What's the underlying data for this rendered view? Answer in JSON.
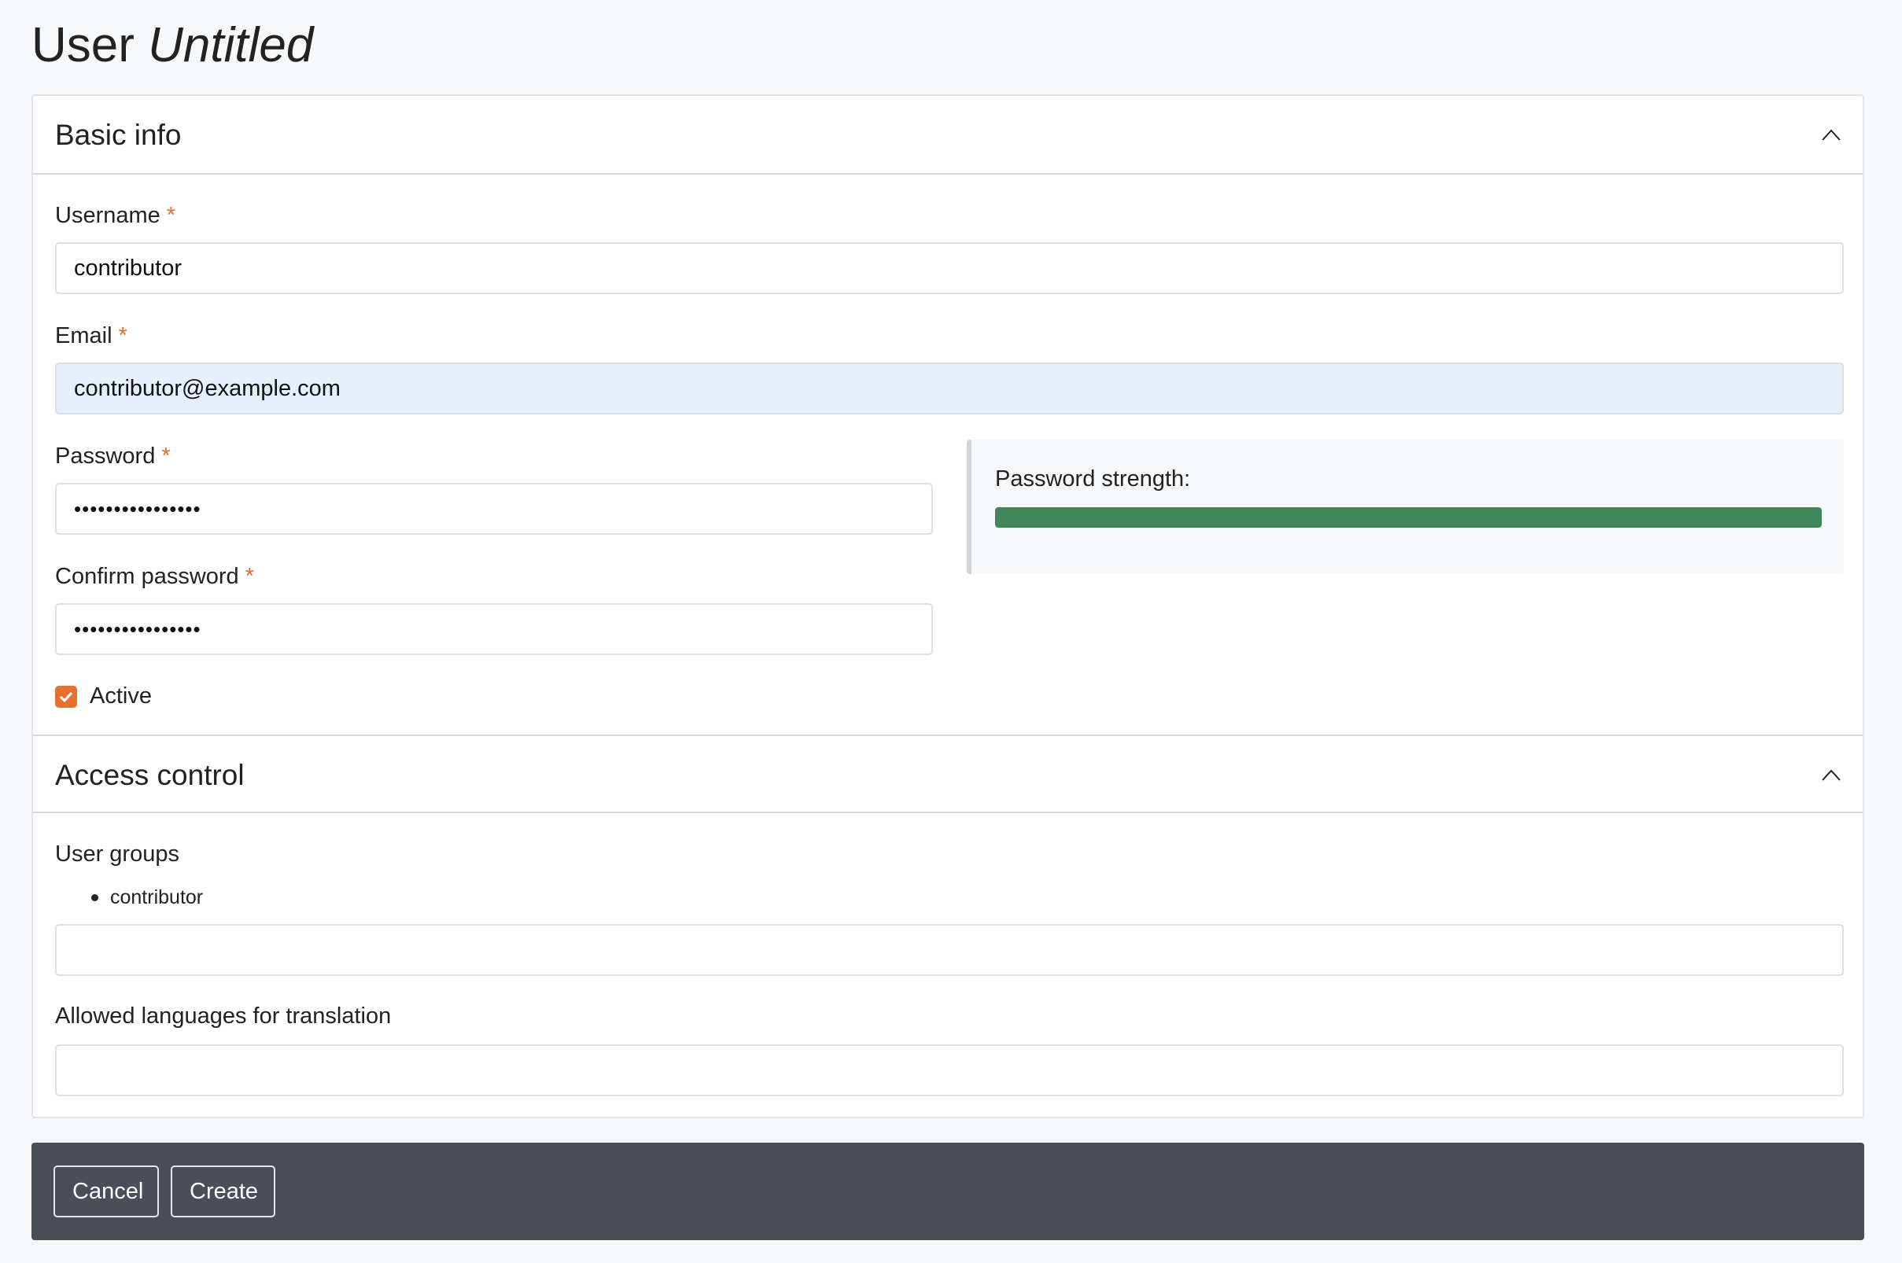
{
  "page": {
    "title_prefix": "User",
    "title_name": "Untitled"
  },
  "basic_info": {
    "heading": "Basic info",
    "collapse_icon": "chevron-up-icon",
    "username": {
      "label": "Username",
      "required": "*",
      "value": "contributor"
    },
    "email": {
      "label": "Email",
      "required": "*",
      "value": "contributor@example.com"
    },
    "password": {
      "label": "Password",
      "required": "*",
      "value": "••••••••••••••••"
    },
    "confirm_password": {
      "label": "Confirm password",
      "required": "*",
      "value": "••••••••••••••••"
    },
    "strength": {
      "label": "Password strength:",
      "level_percent": 100,
      "color": "#40875a"
    },
    "active": {
      "label": "Active",
      "checked": true
    }
  },
  "access_control": {
    "heading": "Access control",
    "collapse_icon": "chevron-up-icon",
    "user_groups": {
      "label": "User groups",
      "items": [
        "contributor"
      ],
      "value": ""
    },
    "languages": {
      "label": "Allowed languages for translation",
      "value": ""
    }
  },
  "footer": {
    "cancel_label": "Cancel",
    "create_label": "Create"
  },
  "colors": {
    "accent": "#e8702f",
    "footer_bg": "#4a4f57",
    "autofill_bg": "#e8effc"
  }
}
